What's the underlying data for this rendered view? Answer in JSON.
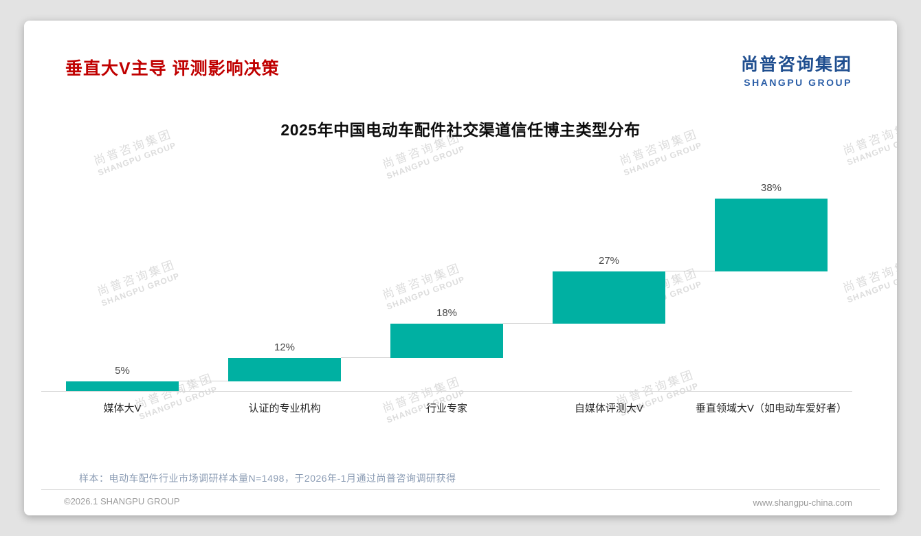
{
  "header": {
    "title": "垂直大V主导 评测影响决策"
  },
  "logo": {
    "cn": "尚普咨询集团",
    "en": "SHANGPU GROUP"
  },
  "watermark": {
    "cn": "尚普咨询集团",
    "en": "SHANGPU GROUP"
  },
  "chart_data": {
    "type": "bar",
    "subtype": "waterfall-ascending-steps",
    "title": "2025年中国电动车配件社交渠道信任博主类型分布",
    "categories": [
      "媒体大V",
      "认证的专业机构",
      "行业专家",
      "自媒体评测大V",
      "垂直领域大V（如电动车爱好者）"
    ],
    "values": [
      5,
      12,
      18,
      27,
      38
    ],
    "data_labels": [
      "5%",
      "12%",
      "18%",
      "27%",
      "38%"
    ],
    "cumulative_baselines": [
      0,
      5,
      17,
      35,
      62
    ],
    "ylim": [
      0,
      100
    ],
    "bar_color": "#00b0a2",
    "grid": false,
    "legend": "none"
  },
  "note": "样本：电动车配件行业市场调研样本量N=1498，于2026年-1月通过尚普咨询调研获得",
  "footer": {
    "copyright": "©2026.1 SHANGPU GROUP",
    "website": "www.shangpu-china.com"
  },
  "colors": {
    "title_red": "#c00000",
    "logo_blue": "#1f4e8f",
    "bar_teal": "#00b0a2",
    "note_gray_blue": "#8a9bb3",
    "footer_gray": "#9b9b9b",
    "watermark_gray": "#dcdcdc",
    "page_background": "#e3e3e3",
    "card_background": "#ffffff"
  }
}
